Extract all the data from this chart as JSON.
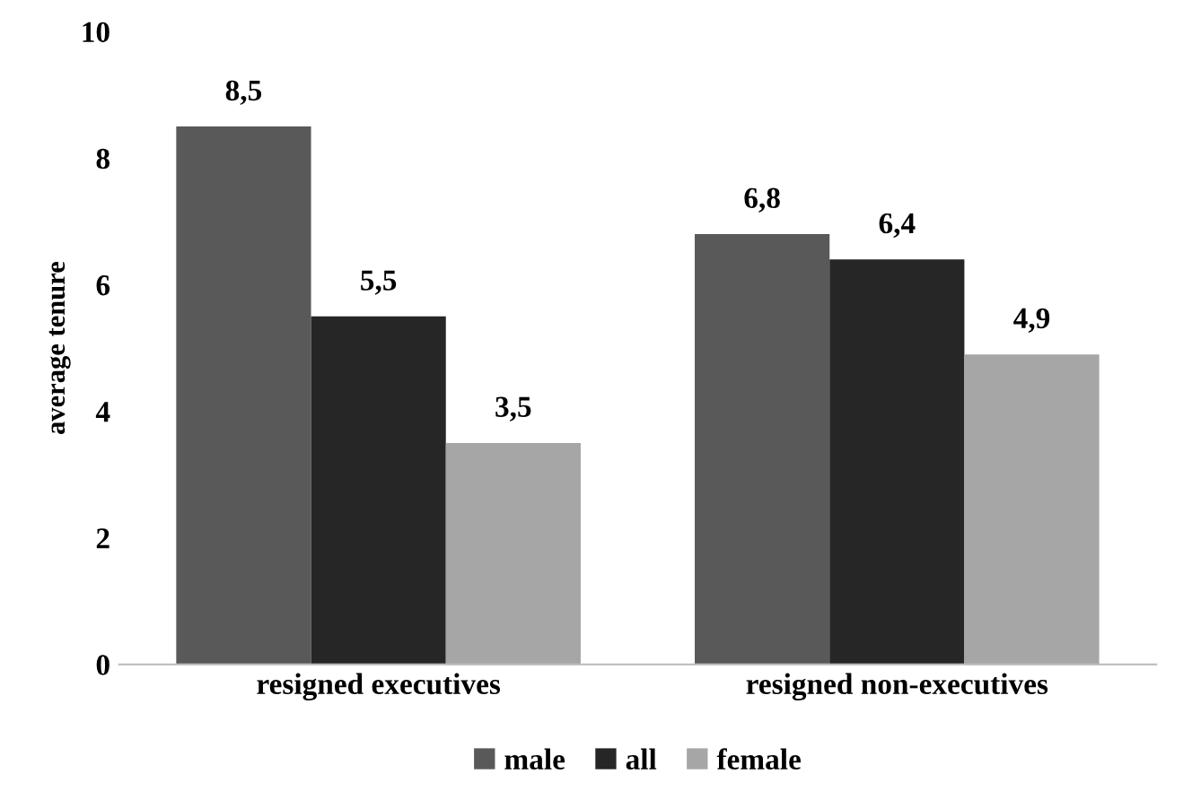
{
  "chart_data": {
    "type": "bar",
    "ylabel": "average tenure",
    "categories": [
      "resigned executives",
      "resigned non-executives"
    ],
    "series": [
      {
        "name": "male",
        "color": "#595959",
        "values": [
          8.5,
          6.8
        ],
        "value_labels": [
          "8,5",
          "6,8"
        ]
      },
      {
        "name": "all",
        "color": "#262626",
        "values": [
          5.5,
          6.4
        ],
        "value_labels": [
          "5,5",
          "6,4"
        ]
      },
      {
        "name": "female",
        "color": "#a6a6a6",
        "values": [
          3.5,
          4.9
        ],
        "value_labels": [
          "3,5",
          "4,9"
        ]
      }
    ],
    "ylim": [
      0,
      10
    ],
    "yticks": [
      0,
      2,
      4,
      6,
      8,
      10
    ],
    "grid": false,
    "legend": "bottom"
  }
}
